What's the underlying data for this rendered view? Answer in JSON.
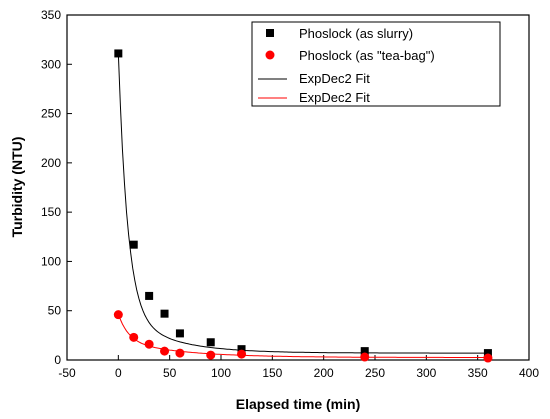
{
  "chart_data": {
    "type": "scatter",
    "xlabel": "Elapsed time (min)",
    "ylabel": "Turbidity (NTU)",
    "xlim": [
      -50,
      400
    ],
    "ylim": [
      0,
      350
    ],
    "x_ticks": [
      -50,
      0,
      50,
      100,
      150,
      200,
      250,
      300,
      350,
      400
    ],
    "y_ticks": [
      0,
      50,
      100,
      150,
      200,
      250,
      300,
      350
    ],
    "legend_position": "top-right",
    "series": [
      {
        "name": "Phoslock (as slurry)",
        "marker": "square",
        "color": "#000000",
        "x": [
          0,
          15,
          30,
          45,
          60,
          90,
          120,
          240,
          360
        ],
        "y": [
          311,
          117,
          65,
          47,
          27,
          18,
          11,
          9,
          7
        ]
      },
      {
        "name": "Phoslock (as \"tea-bag\")",
        "marker": "circle",
        "color": "#ff0000",
        "x": [
          0,
          15,
          30,
          45,
          60,
          90,
          120,
          240,
          360
        ],
        "y": [
          46,
          23,
          16,
          9,
          7,
          5,
          6,
          3,
          2
        ]
      }
    ],
    "fits": [
      {
        "name": "ExpDec2 Fit",
        "color": "#000000",
        "model": "ExpDec2",
        "y0": 7,
        "A1": 263,
        "t1": 9,
        "A2": 42,
        "t2": 45
      },
      {
        "name": "ExpDec2 Fit",
        "color": "#ff0000",
        "model": "ExpDec2",
        "y0": 2.5,
        "A1": 27,
        "t1": 10,
        "A2": 17,
        "t2": 60
      }
    ]
  }
}
